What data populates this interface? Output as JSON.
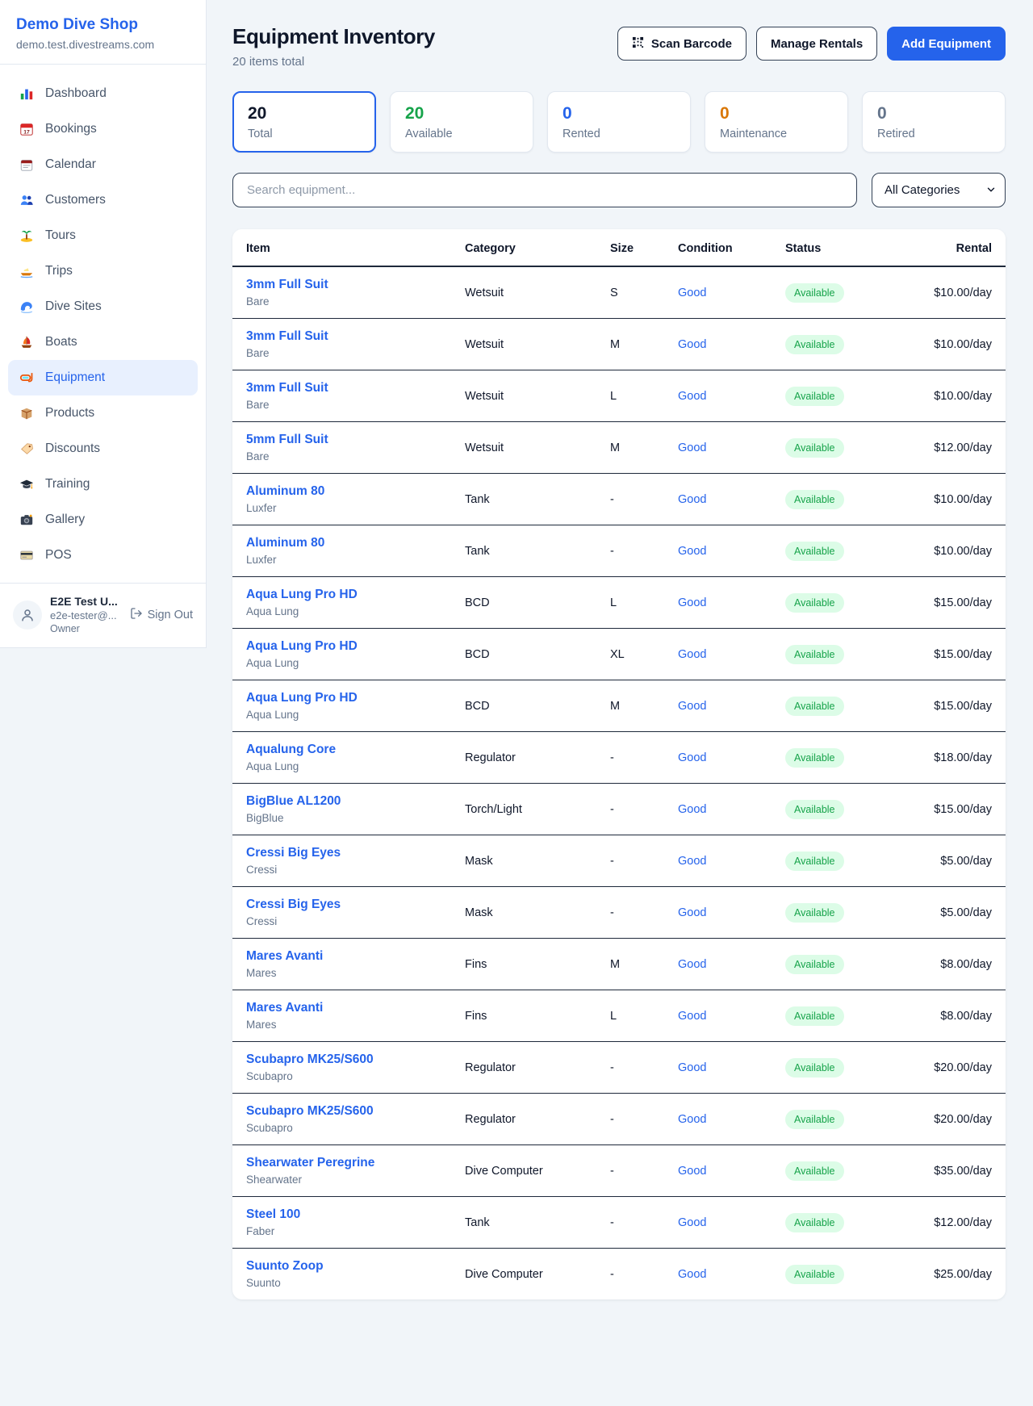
{
  "sidebar": {
    "brand": "Demo Dive Shop",
    "domain": "demo.test.divestreams.com",
    "items": [
      {
        "icon": "dashboard",
        "label": "Dashboard",
        "active": false
      },
      {
        "icon": "bookings",
        "label": "Bookings",
        "active": false
      },
      {
        "icon": "calendar",
        "label": "Calendar",
        "active": false
      },
      {
        "icon": "customers",
        "label": "Customers",
        "active": false
      },
      {
        "icon": "tours",
        "label": "Tours",
        "active": false
      },
      {
        "icon": "trips",
        "label": "Trips",
        "active": false
      },
      {
        "icon": "divesites",
        "label": "Dive Sites",
        "active": false
      },
      {
        "icon": "boats",
        "label": "Boats",
        "active": false
      },
      {
        "icon": "equipment",
        "label": "Equipment",
        "active": true
      },
      {
        "icon": "products",
        "label": "Products",
        "active": false
      },
      {
        "icon": "discounts",
        "label": "Discounts",
        "active": false
      },
      {
        "icon": "training",
        "label": "Training",
        "active": false
      },
      {
        "icon": "gallery",
        "label": "Gallery",
        "active": false
      },
      {
        "icon": "pos",
        "label": "POS",
        "active": false
      }
    ],
    "user": {
      "name": "E2E Test U...",
      "email": "e2e-tester@...",
      "role": "Owner",
      "signout_label": "Sign Out"
    }
  },
  "header": {
    "title": "Equipment Inventory",
    "subtitle": "20 items total",
    "scan_button": "Scan Barcode",
    "manage_button": "Manage Rentals",
    "add_button": "Add Equipment"
  },
  "stats": [
    {
      "value": "20",
      "label": "Total",
      "color": "#0f172a",
      "selected": true
    },
    {
      "value": "20",
      "label": "Available",
      "color": "#16a34a",
      "selected": false
    },
    {
      "value": "0",
      "label": "Rented",
      "color": "#2563eb",
      "selected": false
    },
    {
      "value": "0",
      "label": "Maintenance",
      "color": "#d97706",
      "selected": false
    },
    {
      "value": "0",
      "label": "Retired",
      "color": "#64748b",
      "selected": false
    }
  ],
  "search": {
    "placeholder": "Search equipment...",
    "category_selected": "All Categories"
  },
  "table": {
    "columns": [
      "Item",
      "Category",
      "Size",
      "Condition",
      "Status",
      "Rental"
    ],
    "rows": [
      {
        "item": "3mm Full Suit",
        "brand": "Bare",
        "category": "Wetsuit",
        "size": "S",
        "condition": "Good",
        "status": "Available",
        "rental": "$10.00/day"
      },
      {
        "item": "3mm Full Suit",
        "brand": "Bare",
        "category": "Wetsuit",
        "size": "M",
        "condition": "Good",
        "status": "Available",
        "rental": "$10.00/day"
      },
      {
        "item": "3mm Full Suit",
        "brand": "Bare",
        "category": "Wetsuit",
        "size": "L",
        "condition": "Good",
        "status": "Available",
        "rental": "$10.00/day"
      },
      {
        "item": "5mm Full Suit",
        "brand": "Bare",
        "category": "Wetsuit",
        "size": "M",
        "condition": "Good",
        "status": "Available",
        "rental": "$12.00/day"
      },
      {
        "item": "Aluminum 80",
        "brand": "Luxfer",
        "category": "Tank",
        "size": "-",
        "condition": "Good",
        "status": "Available",
        "rental": "$10.00/day"
      },
      {
        "item": "Aluminum 80",
        "brand": "Luxfer",
        "category": "Tank",
        "size": "-",
        "condition": "Good",
        "status": "Available",
        "rental": "$10.00/day"
      },
      {
        "item": "Aqua Lung Pro HD",
        "brand": "Aqua Lung",
        "category": "BCD",
        "size": "L",
        "condition": "Good",
        "status": "Available",
        "rental": "$15.00/day"
      },
      {
        "item": "Aqua Lung Pro HD",
        "brand": "Aqua Lung",
        "category": "BCD",
        "size": "XL",
        "condition": "Good",
        "status": "Available",
        "rental": "$15.00/day"
      },
      {
        "item": "Aqua Lung Pro HD",
        "brand": "Aqua Lung",
        "category": "BCD",
        "size": "M",
        "condition": "Good",
        "status": "Available",
        "rental": "$15.00/day"
      },
      {
        "item": "Aqualung Core",
        "brand": "Aqua Lung",
        "category": "Regulator",
        "size": "-",
        "condition": "Good",
        "status": "Available",
        "rental": "$18.00/day"
      },
      {
        "item": "BigBlue AL1200",
        "brand": "BigBlue",
        "category": "Torch/Light",
        "size": "-",
        "condition": "Good",
        "status": "Available",
        "rental": "$15.00/day"
      },
      {
        "item": "Cressi Big Eyes",
        "brand": "Cressi",
        "category": "Mask",
        "size": "-",
        "condition": "Good",
        "status": "Available",
        "rental": "$5.00/day"
      },
      {
        "item": "Cressi Big Eyes",
        "brand": "Cressi",
        "category": "Mask",
        "size": "-",
        "condition": "Good",
        "status": "Available",
        "rental": "$5.00/day"
      },
      {
        "item": "Mares Avanti",
        "brand": "Mares",
        "category": "Fins",
        "size": "M",
        "condition": "Good",
        "status": "Available",
        "rental": "$8.00/day"
      },
      {
        "item": "Mares Avanti",
        "brand": "Mares",
        "category": "Fins",
        "size": "L",
        "condition": "Good",
        "status": "Available",
        "rental": "$8.00/day"
      },
      {
        "item": "Scubapro MK25/S600",
        "brand": "Scubapro",
        "category": "Regulator",
        "size": "-",
        "condition": "Good",
        "status": "Available",
        "rental": "$20.00/day"
      },
      {
        "item": "Scubapro MK25/S600",
        "brand": "Scubapro",
        "category": "Regulator",
        "size": "-",
        "condition": "Good",
        "status": "Available",
        "rental": "$20.00/day"
      },
      {
        "item": "Shearwater Peregrine",
        "brand": "Shearwater",
        "category": "Dive Computer",
        "size": "-",
        "condition": "Good",
        "status": "Available",
        "rental": "$35.00/day"
      },
      {
        "item": "Steel 100",
        "brand": "Faber",
        "category": "Tank",
        "size": "-",
        "condition": "Good",
        "status": "Available",
        "rental": "$12.00/day"
      },
      {
        "item": "Suunto Zoop",
        "brand": "Suunto",
        "category": "Dive Computer",
        "size": "-",
        "condition": "Good",
        "status": "Available",
        "rental": "$25.00/day"
      }
    ]
  },
  "colors": {
    "accent_blue": "#2563eb",
    "success_green": "#16a34a",
    "warning_orange": "#d97706",
    "muted_gray": "#64748b",
    "pill_background": "#dcfce7",
    "row_border": "#1e293b",
    "page_background": "#f1f5f9"
  }
}
